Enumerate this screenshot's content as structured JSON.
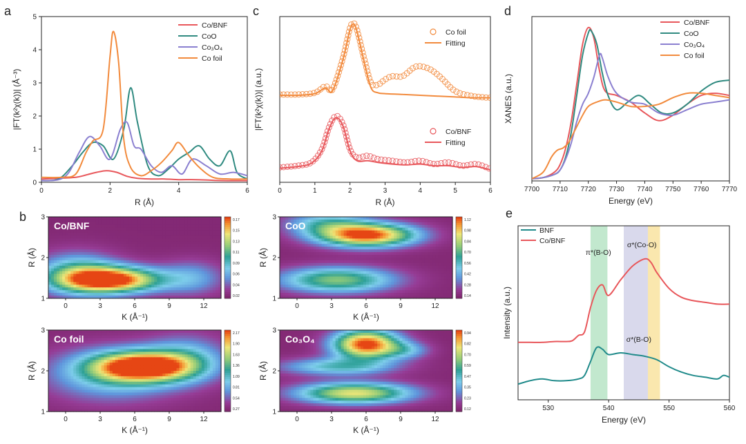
{
  "chart_data": [
    {
      "panel": "a",
      "type": "line",
      "xlabel": "R (Å)",
      "ylabel": "|FT(k²χ(k))| (Å⁻³)",
      "xlim": [
        0,
        6
      ],
      "ylim": [
        0,
        5
      ],
      "xticks": [
        "0",
        "2",
        "4",
        "6"
      ],
      "yticks": [
        "0",
        "1",
        "2",
        "3",
        "4",
        "5"
      ],
      "legend_position": "top-right",
      "series": [
        {
          "name": "Co/BNF",
          "color": "#e8565a",
          "x": [
            0,
            0.5,
            1.0,
            1.3,
            1.6,
            1.9,
            2.2,
            2.5,
            2.8,
            3.2,
            3.6,
            4.0,
            4.5,
            5.0,
            5.5,
            6.0
          ],
          "y": [
            0.1,
            0.12,
            0.15,
            0.22,
            0.3,
            0.35,
            0.3,
            0.18,
            0.12,
            0.1,
            0.1,
            0.08,
            0.08,
            0.06,
            0.05,
            0.05
          ]
        },
        {
          "name": "CoO",
          "color": "#2f8a80",
          "x": [
            0,
            0.5,
            0.9,
            1.2,
            1.5,
            1.8,
            2.1,
            2.4,
            2.6,
            2.8,
            3.1,
            3.4,
            3.7,
            4.0,
            4.3,
            4.6,
            4.9,
            5.2,
            5.5,
            5.7,
            6.0
          ],
          "y": [
            0.05,
            0.1,
            0.5,
            0.9,
            1.2,
            1.1,
            0.7,
            1.6,
            2.85,
            1.8,
            0.5,
            0.2,
            0.4,
            0.7,
            0.9,
            1.1,
            0.7,
            0.5,
            0.95,
            0.3,
            0.1
          ]
        },
        {
          "name": "Co₃O₄",
          "color": "#8a7fd0",
          "x": [
            0,
            0.5,
            0.8,
            1.1,
            1.4,
            1.7,
            2.0,
            2.3,
            2.5,
            2.7,
            2.9,
            3.2,
            3.5,
            3.8,
            4.1,
            4.4,
            4.8,
            5.2,
            5.6,
            6.0
          ],
          "y": [
            0.05,
            0.08,
            0.3,
            0.9,
            1.38,
            1.1,
            0.7,
            1.6,
            1.8,
            1.1,
            1.0,
            0.5,
            0.3,
            0.5,
            0.25,
            0.7,
            0.5,
            0.25,
            0.3,
            0.2
          ]
        },
        {
          "name": "Co foil",
          "color": "#f28a3c",
          "x": [
            0,
            0.6,
            1.0,
            1.3,
            1.5,
            1.8,
            2.0,
            2.1,
            2.25,
            2.4,
            2.6,
            2.9,
            3.2,
            3.5,
            3.8,
            4.0,
            4.3,
            4.6,
            5.0,
            5.5,
            6.0
          ],
          "y": [
            0.15,
            0.15,
            0.25,
            0.9,
            1.25,
            1.6,
            3.8,
            4.55,
            3.6,
            1.3,
            0.45,
            0.2,
            0.35,
            0.6,
            0.95,
            1.2,
            0.8,
            0.45,
            0.15,
            0.1,
            0.1
          ]
        }
      ]
    },
    {
      "panel": "c",
      "type": "line",
      "xlabel": "R (Å)",
      "ylabel": "|FT(k²χ(k))| (a.u.)",
      "xlim": [
        0,
        6
      ],
      "ylim": [
        0,
        10
      ],
      "xticks": [
        "0",
        "1",
        "2",
        "3",
        "4",
        "5",
        "6"
      ],
      "series": [
        {
          "name": "Co foil",
          "kind": "markers",
          "color": "#f28a3c",
          "group": "Co foil",
          "x": [
            0,
            0.5,
            1.0,
            1.3,
            1.5,
            1.8,
            2.0,
            2.1,
            2.2,
            2.4,
            2.6,
            2.8,
            3.0,
            3.2,
            3.5,
            3.8,
            4.0,
            4.3,
            4.6,
            5.0,
            5.5,
            6.0
          ],
          "y": [
            5.3,
            5.3,
            5.4,
            5.8,
            5.6,
            7.5,
            9.3,
            9.6,
            9.2,
            7.5,
            6.0,
            5.9,
            6.2,
            6.4,
            6.4,
            6.9,
            7.0,
            6.8,
            6.3,
            5.5,
            5.2,
            5.1
          ]
        },
        {
          "name": "Fitting",
          "kind": "line",
          "color": "#f28a3c",
          "group": "Co foil",
          "x": [
            0,
            0.5,
            1.0,
            1.3,
            1.5,
            1.8,
            2.0,
            2.1,
            2.2,
            2.4,
            2.6,
            2.8,
            3.0,
            3.5,
            4.0,
            4.5,
            5.0,
            5.5,
            6.0
          ],
          "y": [
            5.25,
            5.25,
            5.35,
            5.7,
            5.5,
            7.4,
            9.2,
            9.55,
            9.1,
            7.3,
            5.7,
            5.4,
            5.35,
            5.3,
            5.25,
            5.2,
            5.15,
            5.1,
            5.1
          ]
        },
        {
          "name": "Co/BNF",
          "kind": "markers",
          "color": "#e8565a",
          "group": "Co/BNF",
          "x": [
            0,
            0.5,
            0.9,
            1.2,
            1.4,
            1.6,
            1.8,
            2.0,
            2.2,
            2.5,
            2.8,
            3.2,
            3.6,
            4.0,
            4.4,
            4.8,
            5.2,
            5.6,
            6.0
          ],
          "y": [
            0.9,
            1.0,
            1.2,
            2.0,
            3.3,
            4.0,
            3.5,
            2.0,
            1.5,
            1.6,
            1.4,
            1.3,
            1.2,
            1.3,
            1.1,
            1.2,
            1.0,
            1.1,
            0.8
          ]
        },
        {
          "name": "Fitting",
          "kind": "line",
          "color": "#e8565a",
          "group": "Co/BNF",
          "x": [
            0,
            0.5,
            0.9,
            1.2,
            1.4,
            1.6,
            1.8,
            2.0,
            2.2,
            2.5,
            2.8,
            3.2,
            3.6,
            4.0,
            4.4,
            4.8,
            5.2,
            5.6,
            6.0
          ],
          "y": [
            0.85,
            0.95,
            1.15,
            1.9,
            3.2,
            3.9,
            3.4,
            1.9,
            1.3,
            1.3,
            1.2,
            1.1,
            1.05,
            1.1,
            1.0,
            1.0,
            0.9,
            0.95,
            0.75
          ]
        }
      ]
    },
    {
      "panel": "d",
      "type": "line",
      "xlabel": "Energy (eV)",
      "ylabel": "XANES (a.u.)",
      "xlim": [
        7700,
        7770
      ],
      "ylim": [
        0,
        1.5
      ],
      "xticks": [
        "7700",
        "7710",
        "7720",
        "7730",
        "7740",
        "7750",
        "7760",
        "7770"
      ],
      "legend_position": "top-right",
      "series": [
        {
          "name": "Co/BNF",
          "color": "#e8565a",
          "x": [
            7700,
            7704,
            7708,
            7710,
            7712,
            7714,
            7716,
            7718,
            7720,
            7722,
            7724,
            7726,
            7730,
            7735,
            7740,
            7745,
            7750,
            7755,
            7760,
            7765,
            7770
          ],
          "y": [
            0.02,
            0.03,
            0.08,
            0.15,
            0.3,
            0.55,
            0.9,
            1.25,
            1.4,
            1.3,
            1.0,
            0.82,
            0.78,
            0.72,
            0.62,
            0.55,
            0.6,
            0.7,
            0.78,
            0.8,
            0.78
          ]
        },
        {
          "name": "CoO",
          "color": "#2f8a80",
          "x": [
            7700,
            7704,
            7708,
            7710,
            7712,
            7714,
            7716,
            7718,
            7720,
            7721,
            7723,
            7725,
            7727,
            7730,
            7734,
            7738,
            7742,
            7746,
            7750,
            7755,
            7760,
            7765,
            7770
          ],
          "y": [
            0.02,
            0.03,
            0.06,
            0.1,
            0.22,
            0.45,
            0.8,
            1.15,
            1.35,
            1.37,
            1.25,
            0.98,
            0.78,
            0.65,
            0.72,
            0.78,
            0.7,
            0.62,
            0.62,
            0.7,
            0.82,
            0.9,
            0.92
          ]
        },
        {
          "name": "Co₃O₄",
          "color": "#8a7fd0",
          "x": [
            7700,
            7704,
            7708,
            7710,
            7712,
            7714,
            7716,
            7718,
            7720,
            7722,
            7724,
            7725,
            7727,
            7730,
            7735,
            7740,
            7745,
            7750,
            7755,
            7760,
            7765,
            7770
          ],
          "y": [
            0.02,
            0.03,
            0.06,
            0.1,
            0.2,
            0.35,
            0.55,
            0.7,
            0.8,
            0.95,
            1.15,
            1.12,
            0.95,
            0.8,
            0.72,
            0.7,
            0.62,
            0.6,
            0.65,
            0.7,
            0.72,
            0.74
          ]
        },
        {
          "name": "Co foil",
          "color": "#f28a3c",
          "x": [
            7700,
            7704,
            7707,
            7709,
            7711,
            7713,
            7715,
            7718,
            7720,
            7723,
            7726,
            7730,
            7735,
            7740,
            7745,
            7750,
            7755,
            7760,
            7765,
            7770
          ],
          "y": [
            0.02,
            0.08,
            0.22,
            0.28,
            0.3,
            0.35,
            0.45,
            0.6,
            0.68,
            0.72,
            0.74,
            0.72,
            0.68,
            0.68,
            0.7,
            0.76,
            0.8,
            0.8,
            0.78,
            0.76
          ]
        }
      ]
    },
    {
      "panel": "e",
      "type": "line",
      "xlabel": "Energy (eV)",
      "ylabel": "Intensity (a.u.)",
      "xlim": [
        525,
        560
      ],
      "ylim": [
        0,
        10
      ],
      "xticks": [
        "530",
        "540",
        "550",
        "560"
      ],
      "legend_position": "top-left",
      "shaded_bands": [
        {
          "from": 537,
          "to": 539.8,
          "color": "#8fd6a5",
          "label": "π*(B-O)"
        },
        {
          "from": 542.5,
          "to": 546.5,
          "color": "#b9b9dc",
          "label": "σ*(B-O)"
        },
        {
          "from": 546.5,
          "to": 548.5,
          "color": "#f5d36b",
          "label": "σ*(Co-O)"
        }
      ],
      "series": [
        {
          "name": "BNF",
          "color": "#1f8a8a",
          "x": [
            525,
            527,
            529,
            531,
            533,
            535,
            536,
            537,
            538,
            539,
            540,
            542,
            544,
            546,
            548,
            550,
            552,
            554,
            556,
            558,
            559,
            560
          ],
          "y": [
            0.9,
            1.1,
            1.2,
            1.1,
            1.1,
            1.2,
            1.4,
            2.2,
            3.0,
            2.9,
            2.6,
            2.7,
            2.6,
            2.5,
            2.3,
            1.9,
            1.6,
            1.4,
            1.3,
            1.2,
            1.4,
            1.3
          ]
        },
        {
          "name": "Co/BNF",
          "color": "#e8565a",
          "x": [
            525,
            527,
            529,
            531,
            533,
            534,
            535,
            536,
            537,
            538,
            539,
            540,
            542,
            544,
            546,
            547,
            548,
            550,
            552,
            554,
            556,
            558,
            560
          ],
          "y": [
            3.3,
            3.3,
            3.3,
            3.35,
            3.35,
            3.4,
            3.7,
            3.9,
            5.3,
            6.3,
            6.6,
            6.0,
            6.9,
            7.7,
            8.1,
            7.9,
            7.3,
            6.4,
            5.9,
            5.7,
            5.6,
            5.5,
            5.5
          ]
        }
      ]
    },
    {
      "panel": "b",
      "type": "heatmap",
      "xlabel": "K (Å⁻¹)",
      "ylabel": "R (Å)",
      "xlim": [
        -1.5,
        13.5
      ],
      "ylim": [
        1,
        3
      ],
      "xticks": [
        "0",
        "3",
        "6",
        "9",
        "12"
      ],
      "yticks": [
        "1",
        "2",
        "3"
      ],
      "maps": [
        {
          "title": "Co/BNF",
          "colorbar_ticks": [
            "0.17",
            "0.15",
            "0.13",
            "0.11",
            "0.09",
            "0.06",
            "0.04",
            "0.02"
          ],
          "blobs": [
            {
              "k": 4,
              "r": 1.45,
              "sk": 3.0,
              "sr": 0.22,
              "a": 1.0
            },
            {
              "k": 1.0,
              "r": 1.6,
              "sk": 2.5,
              "sr": 0.35,
              "a": 0.45
            },
            {
              "k": 11,
              "r": 1.5,
              "sk": 2.0,
              "sr": 0.3,
              "a": 0.25
            }
          ]
        },
        {
          "title": "CoO",
          "colorbar_ticks": [
            "1.12",
            "0.98",
            "0.84",
            "0.70",
            "0.56",
            "0.42",
            "0.28",
            "0.14"
          ],
          "blobs": [
            {
              "k": 6,
              "r": 2.55,
              "sk": 3.0,
              "sr": 0.2,
              "a": 1.0
            },
            {
              "k": 3.5,
              "r": 1.45,
              "sk": 3.5,
              "sr": 0.22,
              "a": 0.6
            },
            {
              "k": 2.5,
              "r": 2.85,
              "sk": 2.5,
              "sr": 0.2,
              "a": 0.35
            }
          ]
        },
        {
          "title": "Co foil",
          "colorbar_ticks": [
            "2.17",
            "1.90",
            "1.63",
            "1.36",
            "1.09",
            "0.81",
            "0.54",
            "0.27"
          ],
          "blobs": [
            {
              "k": 6.7,
              "r": 2.1,
              "sk": 3.0,
              "sr": 0.25,
              "a": 1.0
            },
            {
              "k": 4.0,
              "r": 1.9,
              "sk": 4.0,
              "sr": 0.45,
              "a": 0.35
            },
            {
              "k": 10.5,
              "r": 2.3,
              "sk": 2.5,
              "sr": 0.4,
              "a": 0.3
            }
          ]
        },
        {
          "title": "Co₃O₄",
          "colorbar_ticks": [
            "0.94",
            "0.82",
            "0.70",
            "0.59",
            "0.47",
            "0.35",
            "0.23",
            "0.12"
          ],
          "blobs": [
            {
              "k": 6,
              "r": 2.65,
              "sk": 2.0,
              "sr": 0.25,
              "a": 1.0
            },
            {
              "k": 5,
              "r": 1.45,
              "sk": 3.5,
              "sr": 0.18,
              "a": 0.75
            },
            {
              "k": 3.5,
              "r": 2.1,
              "sk": 3.5,
              "sr": 0.15,
              "a": 0.4
            },
            {
              "k": 9.5,
              "r": 2.5,
              "sk": 1.5,
              "sr": 0.15,
              "a": 0.25
            }
          ]
        }
      ]
    }
  ]
}
